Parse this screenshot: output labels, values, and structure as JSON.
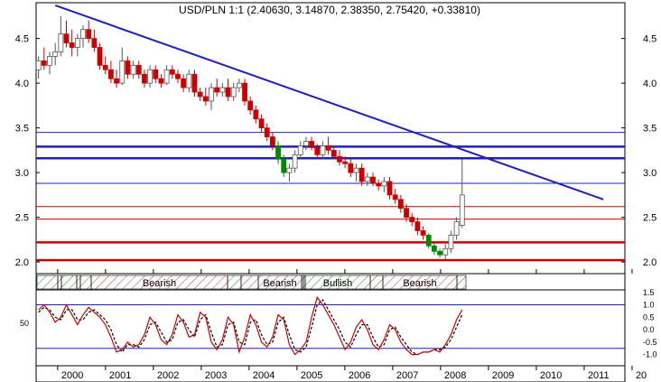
{
  "chart_data": {
    "type": "candlestick",
    "title": "USD/PLN 1:1 (2.40630, 3.14870, 2.38350, 2.75420, +0.33810)",
    "y_range": [
      1.87,
      4.9
    ],
    "x_range": [
      1999.55,
      2011.85
    ],
    "y_ticks": [
      "2.0",
      "2.5",
      "3.0",
      "3.5",
      "4.0",
      "4.5"
    ],
    "x_ticks": [
      "2000",
      "2001",
      "2002",
      "2003",
      "2004",
      "2005",
      "2006",
      "2007",
      "2008",
      "2009",
      "2010",
      "2011",
      "20"
    ],
    "trendline": {
      "start": [
        1999.95,
        4.87
      ],
      "end": [
        2011.4,
        2.7
      ],
      "color": "#1f1fbf"
    },
    "horizontal_levels_blue": [
      {
        "y": 3.45,
        "weight": "thin"
      },
      {
        "y": 3.29,
        "weight": "thick"
      },
      {
        "y": 3.16,
        "weight": "thick"
      },
      {
        "y": 2.88,
        "weight": "thin"
      }
    ],
    "horizontal_levels_red": [
      {
        "y": 2.62,
        "weight": "thin"
      },
      {
        "y": 2.48,
        "weight": "thin"
      },
      {
        "y": 2.22,
        "weight": "thick"
      },
      {
        "y": 2.02,
        "weight": "thick"
      }
    ],
    "candles": [
      [
        4.15,
        4.3,
        4.05,
        4.25
      ],
      [
        4.25,
        4.4,
        4.15,
        4.2
      ],
      [
        4.2,
        4.35,
        4.1,
        4.3
      ],
      [
        4.3,
        4.45,
        4.2,
        4.35
      ],
      [
        4.35,
        4.75,
        4.3,
        4.55
      ],
      [
        4.55,
        4.7,
        4.4,
        4.45
      ],
      [
        4.45,
        4.6,
        4.3,
        4.4
      ],
      [
        4.4,
        4.55,
        4.3,
        4.5
      ],
      [
        4.5,
        4.65,
        4.4,
        4.6
      ],
      [
        4.6,
        4.7,
        4.45,
        4.5
      ],
      [
        4.5,
        4.6,
        4.35,
        4.4
      ],
      [
        4.4,
        4.45,
        4.15,
        4.2
      ],
      [
        4.2,
        4.3,
        4.1,
        4.15
      ],
      [
        4.15,
        4.25,
        4.0,
        4.05
      ],
      [
        4.05,
        4.15,
        3.95,
        4.0
      ],
      [
        4.0,
        4.4,
        3.98,
        4.25
      ],
      [
        4.25,
        4.3,
        4.05,
        4.1
      ],
      [
        4.1,
        4.25,
        4.05,
        4.2
      ],
      [
        4.2,
        4.25,
        4.05,
        4.1
      ],
      [
        4.1,
        4.15,
        3.95,
        4.0
      ],
      [
        4.0,
        4.2,
        3.95,
        4.15
      ],
      [
        4.15,
        4.2,
        4.0,
        4.05
      ],
      [
        4.05,
        4.1,
        3.95,
        4.0
      ],
      [
        4.0,
        4.2,
        3.98,
        4.15
      ],
      [
        4.15,
        4.2,
        4.05,
        4.1
      ],
      [
        4.1,
        4.15,
        4.0,
        4.05
      ],
      [
        4.05,
        4.1,
        3.9,
        3.95
      ],
      [
        3.95,
        4.15,
        3.9,
        4.1
      ],
      [
        4.1,
        4.15,
        3.85,
        3.9
      ],
      [
        3.9,
        3.95,
        3.8,
        3.85
      ],
      [
        3.85,
        3.95,
        3.75,
        3.8
      ],
      [
        3.8,
        4.0,
        3.7,
        3.95
      ],
      [
        3.95,
        4.05,
        3.85,
        3.9
      ],
      [
        3.9,
        4.0,
        3.85,
        3.95
      ],
      [
        3.95,
        4.05,
        3.8,
        3.85
      ],
      [
        3.85,
        4.0,
        3.8,
        3.95
      ],
      [
        3.95,
        4.05,
        3.9,
        4.0
      ],
      [
        4.0,
        4.05,
        3.75,
        3.8
      ],
      [
        3.8,
        3.85,
        3.65,
        3.7
      ],
      [
        3.7,
        3.75,
        3.55,
        3.6
      ],
      [
        3.6,
        3.65,
        3.45,
        3.5
      ],
      [
        3.5,
        3.55,
        3.35,
        3.4
      ],
      [
        3.4,
        3.45,
        3.25,
        3.3
      ],
      [
        3.3,
        3.35,
        3.1,
        3.15
      ],
      [
        3.15,
        3.2,
        2.95,
        3.0
      ],
      [
        3.0,
        3.1,
        2.9,
        3.05
      ],
      [
        3.05,
        3.25,
        3.0,
        3.2
      ],
      [
        3.2,
        3.35,
        3.15,
        3.3
      ],
      [
        3.3,
        3.4,
        3.25,
        3.35
      ],
      [
        3.35,
        3.4,
        3.25,
        3.28
      ],
      [
        3.28,
        3.32,
        3.15,
        3.2
      ],
      [
        3.2,
        3.35,
        3.15,
        3.3
      ],
      [
        3.3,
        3.4,
        3.2,
        3.25
      ],
      [
        3.25,
        3.3,
        3.15,
        3.18
      ],
      [
        3.18,
        3.25,
        3.08,
        3.12
      ],
      [
        3.12,
        3.18,
        3.05,
        3.1
      ],
      [
        3.1,
        3.15,
        2.95,
        3.0
      ],
      [
        3.0,
        3.1,
        2.9,
        3.05
      ],
      [
        3.05,
        3.1,
        2.85,
        2.9
      ],
      [
        2.9,
        3.0,
        2.85,
        2.95
      ],
      [
        2.95,
        3.0,
        2.85,
        2.88
      ],
      [
        2.88,
        2.92,
        2.8,
        2.85
      ],
      [
        2.85,
        2.95,
        2.78,
        2.9
      ],
      [
        2.9,
        2.95,
        2.7,
        2.75
      ],
      [
        2.75,
        2.82,
        2.65,
        2.7
      ],
      [
        2.7,
        2.75,
        2.55,
        2.6
      ],
      [
        2.6,
        2.65,
        2.45,
        2.5
      ],
      [
        2.5,
        2.55,
        2.4,
        2.45
      ],
      [
        2.45,
        2.5,
        2.3,
        2.35
      ],
      [
        2.35,
        2.4,
        2.25,
        2.3
      ],
      [
        2.3,
        2.32,
        2.15,
        2.18
      ],
      [
        2.18,
        2.22,
        2.08,
        2.12
      ],
      [
        2.12,
        2.15,
        2.05,
        2.08
      ],
      [
        2.08,
        2.2,
        2.03,
        2.15
      ],
      [
        2.15,
        2.35,
        2.1,
        2.3
      ],
      [
        2.3,
        2.5,
        2.25,
        2.45
      ],
      [
        2.41,
        3.15,
        2.38,
        2.75
      ]
    ],
    "indicator": {
      "panel_ylim": [
        -1.45,
        1.6
      ],
      "right_ticks": [
        "1.5",
        "1.0",
        "0.5",
        "0.0",
        "-0.5",
        "-1.0"
      ],
      "left_tick": "50",
      "ref_lines": [
        1.0,
        -0.75
      ],
      "solid": [
        0.8,
        1.0,
        0.7,
        0.3,
        0.5,
        1.0,
        0.6,
        0.2,
        0.6,
        0.9,
        0.7,
        0.5,
        0.2,
        -0.3,
        -0.9,
        -0.8,
        -0.5,
        -0.7,
        -0.6,
        -0.2,
        0.5,
        0.2,
        -0.4,
        -0.6,
        -0.2,
        0.6,
        0.3,
        -0.3,
        -0.2,
        0.7,
        0.5,
        -0.5,
        -0.8,
        -0.4,
        0.5,
        0.2,
        -0.9,
        -0.3,
        0.6,
        0.2,
        -0.5,
        -0.7,
        -0.3,
        0.6,
        0.4,
        -0.6,
        -1.0,
        -0.8,
        -0.5,
        0.5,
        1.3,
        1.0,
        0.6,
        0.2,
        -0.3,
        -0.8,
        -0.5,
        0.1,
        0.4,
        0.0,
        -0.6,
        -0.8,
        -0.4,
        0.2,
        0.0,
        -0.5,
        -0.8,
        -1.0,
        -1.0,
        -0.9,
        -0.9,
        -0.8,
        -0.9,
        -0.6,
        -0.2,
        0.4,
        0.8
      ],
      "dashed": [
        0.7,
        0.9,
        0.8,
        0.5,
        0.4,
        0.8,
        0.8,
        0.4,
        0.4,
        0.7,
        0.8,
        0.6,
        0.4,
        0.0,
        -0.6,
        -0.9,
        -0.6,
        -0.6,
        -0.7,
        -0.4,
        0.2,
        0.3,
        -0.1,
        -0.5,
        -0.4,
        0.3,
        0.4,
        0.0,
        -0.3,
        0.4,
        0.6,
        -0.1,
        -0.7,
        -0.6,
        0.2,
        0.3,
        -0.5,
        -0.6,
        0.3,
        0.4,
        -0.2,
        -0.6,
        -0.5,
        0.3,
        0.5,
        -0.2,
        -0.8,
        -0.9,
        -0.7,
        0.1,
        1.0,
        1.2,
        0.8,
        0.4,
        0.0,
        -0.5,
        -0.7,
        -0.2,
        0.2,
        0.2,
        -0.3,
        -0.7,
        -0.6,
        0.0,
        0.1,
        -0.3,
        -0.6,
        -0.9,
        -1.0,
        -0.9,
        -0.9,
        -0.8,
        -0.8,
        -0.7,
        -0.4,
        0.1,
        0.6
      ]
    },
    "band_labels": [
      "Bearish",
      "Bearish",
      "Bullish",
      "Bearish"
    ],
    "colors": {
      "up_candle": "#ffffff",
      "bear_candle": "#cc0000",
      "green_candle": "#008800",
      "indicator_solid": "#cc0000",
      "indicator_dashed": "#000000"
    }
  }
}
